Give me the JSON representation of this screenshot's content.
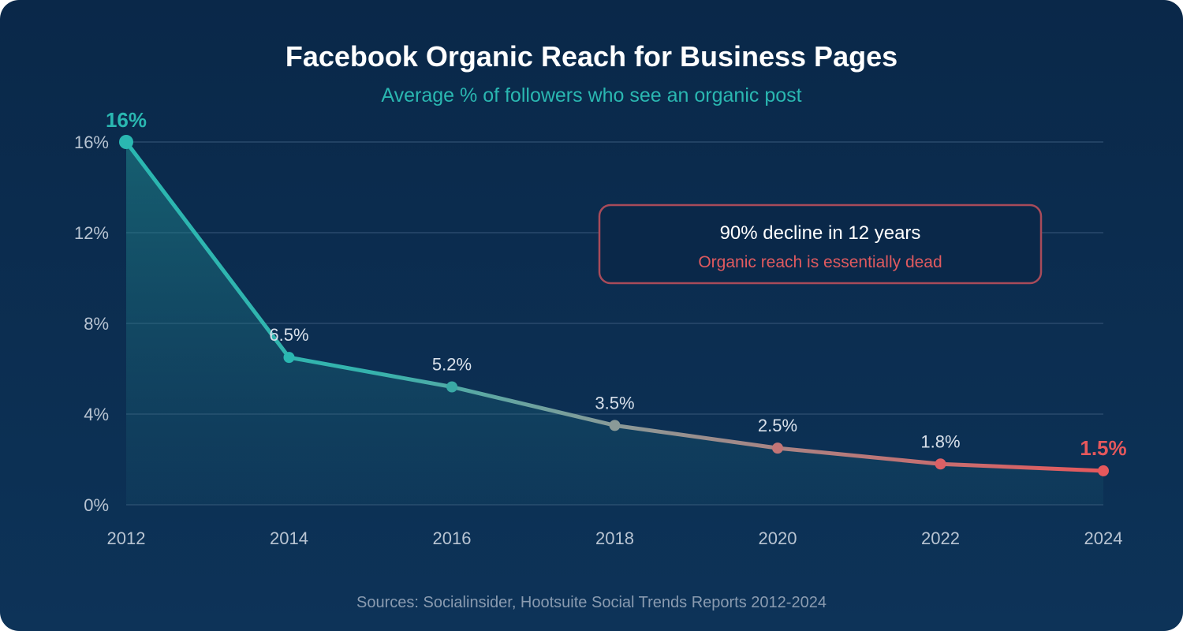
{
  "chart_data": {
    "type": "area",
    "title": "Facebook Organic Reach for Business Pages",
    "subtitle": "Average % of followers who see an organic post",
    "x": [
      2012,
      2014,
      2016,
      2018,
      2020,
      2022,
      2024
    ],
    "xtick_labels": [
      "2012",
      "2014",
      "2016",
      "2018",
      "2020",
      "2022",
      "2024"
    ],
    "values": [
      16,
      6.5,
      5.2,
      3.5,
      2.5,
      1.8,
      1.5
    ],
    "data_labels": [
      "16%",
      "6.5%",
      "5.2%",
      "3.5%",
      "2.5%",
      "1.8%",
      "1.5%"
    ],
    "ylim": [
      0,
      16
    ],
    "yticks": [
      0,
      4,
      8,
      12,
      16
    ],
    "ytick_labels": [
      "0%",
      "4%",
      "8%",
      "12%",
      "16%"
    ],
    "grid": true,
    "line_gradient": [
      "#2ab7b1",
      "#e5585c"
    ],
    "annotation": {
      "title": "90% decline in 12 years",
      "subtitle": "Organic reach is essentially dead",
      "border_color": "#a84b5a",
      "subtitle_color": "#e05a5f"
    },
    "source": "Sources: Socialinsider, Hootsuite Social Trends Reports 2012-2024"
  }
}
